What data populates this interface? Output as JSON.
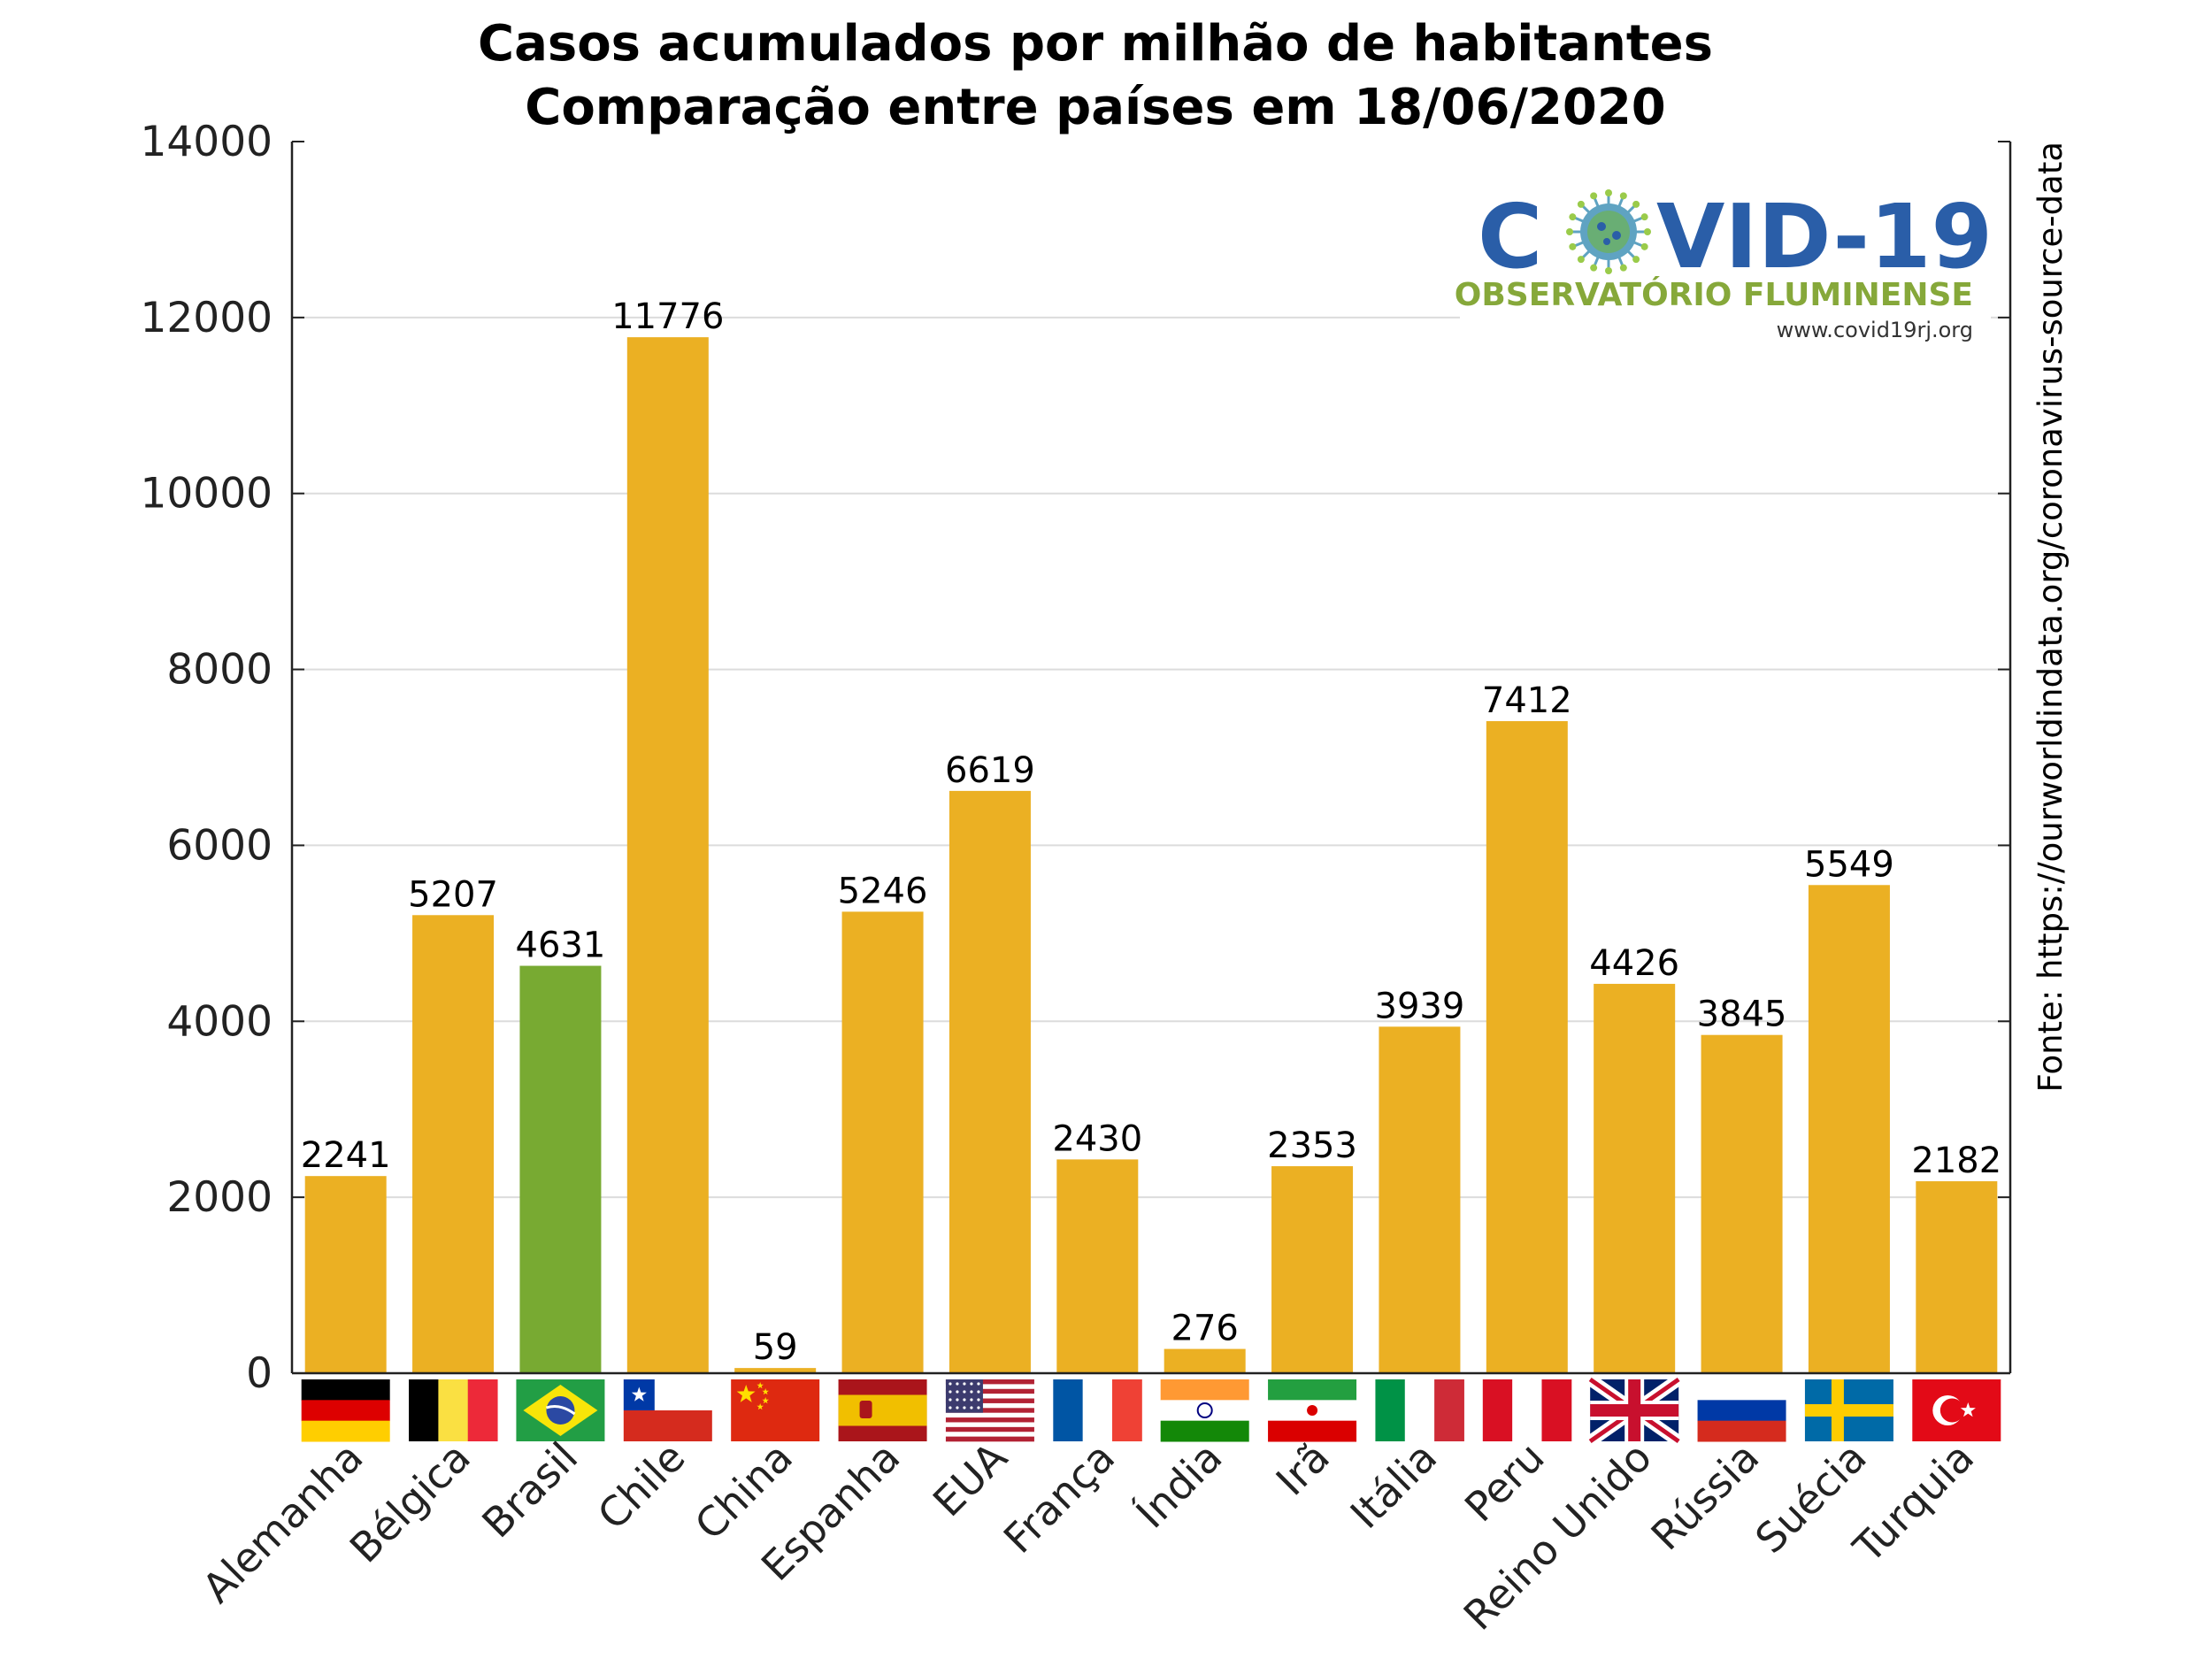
{
  "chart_data": {
    "type": "bar",
    "title": [
      "Casos acumulados por milhão de habitantes",
      "Comparação entre países em 18/06/2020"
    ],
    "categories": [
      "Alemanha",
      "Bélgica",
      "Brasil",
      "Chile",
      "China",
      "Espanha",
      "EUA",
      "França",
      "Índia",
      "Irã",
      "Itália",
      "Peru",
      "Reino Unido",
      "Rússia",
      "Suécia",
      "Turquia"
    ],
    "values": [
      2241,
      5207,
      4631,
      11776,
      59,
      5246,
      6619,
      2430,
      276,
      2353,
      3939,
      7412,
      4426,
      3845,
      5549,
      2182
    ],
    "ylim": [
      0,
      14000
    ],
    "yticks": [
      0,
      2000,
      4000,
      6000,
      8000,
      10000,
      12000,
      14000
    ],
    "grid": true,
    "bar_color": "#ebb023",
    "highlight_color": "#78aa32",
    "highlight_index": 2,
    "source_text": "Fonte: https://ourworldindata.org/coronavirus-source-data"
  },
  "logo": {
    "title_left": "C",
    "title_right": "VID-19",
    "subtitle": "OBSERVATÓRIO FLUMINENSE",
    "url": "www.covid19rj.org",
    "blue": "#2a5ea8",
    "green": "#86a83a"
  },
  "flags": [
    "germany",
    "belgium",
    "brazil",
    "chile",
    "china",
    "spain",
    "usa",
    "france",
    "india",
    "iran",
    "italy",
    "peru",
    "uk",
    "russia",
    "sweden",
    "turkey"
  ]
}
